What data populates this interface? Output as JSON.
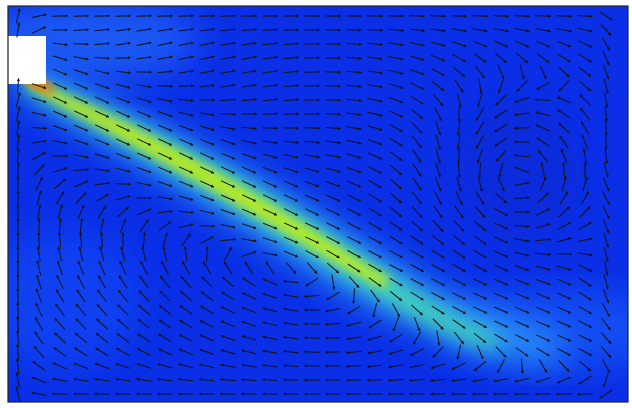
{
  "figure": {
    "kind": "flow-velocity-field",
    "colormap": "jet",
    "colors": {
      "background": "#ffffff",
      "frame": "#222222",
      "domain_base": "#0a2fe6",
      "jet_core": "#d8e000",
      "inlet_hot": "#ff5a00",
      "arrow": "#111111"
    }
  }
}
